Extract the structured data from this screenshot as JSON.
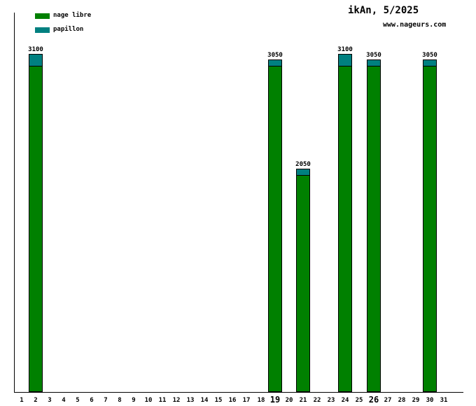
{
  "chart_data": {
    "type": "bar",
    "stacked": true,
    "title": "ikAn, 5/2025",
    "watermark": "www.nageurs.com",
    "unit": "m",
    "categories": [
      "1",
      "2",
      "3",
      "4",
      "5",
      "6",
      "7",
      "8",
      "9",
      "10",
      "11",
      "12",
      "13",
      "14",
      "15",
      "16",
      "17",
      "18",
      "19",
      "20",
      "21",
      "22",
      "23",
      "24",
      "25",
      "26",
      "27",
      "28",
      "29",
      "30",
      "31"
    ],
    "bold_categories": [
      "19",
      "26"
    ],
    "series": [
      {
        "name": "nage libre",
        "color": "#008000"
      },
      {
        "name": "papillon",
        "color": "#008080"
      }
    ],
    "bars": [
      {
        "day": "2",
        "nage_libre": 3000,
        "papillon": 100,
        "total": 3100,
        "label": "3100"
      },
      {
        "day": "19",
        "nage_libre": 3000,
        "papillon": 50,
        "total": 3050,
        "label": "3050"
      },
      {
        "day": "21",
        "nage_libre": 2000,
        "papillon": 50,
        "total": 2050,
        "label": "2050"
      },
      {
        "day": "24",
        "nage_libre": 3000,
        "papillon": 100,
        "total": 3100,
        "label": "3100"
      },
      {
        "day": "26",
        "nage_libre": 3000,
        "papillon": 50,
        "total": 3050,
        "label": "3050"
      },
      {
        "day": "30",
        "nage_libre": 3000,
        "papillon": 50,
        "total": 3050,
        "label": "3050"
      }
    ],
    "ylim": [
      0,
      3500
    ],
    "grid": false,
    "legend_position": "top-left",
    "axis_color": "#000000",
    "label_color": "#000000",
    "background_color": "#ffffff"
  }
}
